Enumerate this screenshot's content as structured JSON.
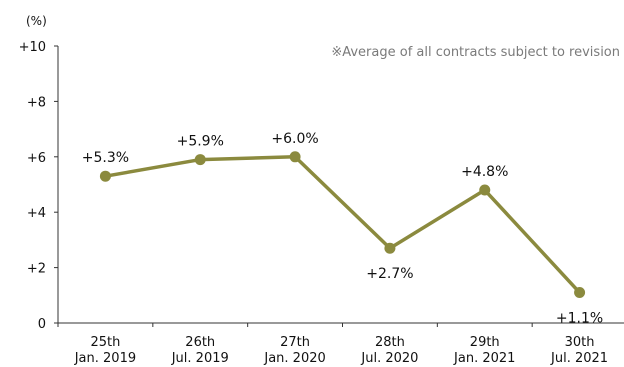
{
  "chart_data": {
    "type": "line",
    "unit_label": "(%)",
    "note": "※Average of all contracts subject to revision",
    "ylim": [
      0,
      10
    ],
    "y_ticks": [
      {
        "value": 0,
        "label": "0"
      },
      {
        "value": 2,
        "label": "+2"
      },
      {
        "value": 4,
        "label": "+4"
      },
      {
        "value": 6,
        "label": "+6"
      },
      {
        "value": 8,
        "label": "+8"
      },
      {
        "value": 10,
        "label": "+10"
      }
    ],
    "categories": [
      {
        "line1": "25th",
        "line2": "Jan. 2019"
      },
      {
        "line1": "26th",
        "line2": "Jul. 2019"
      },
      {
        "line1": "27th",
        "line2": "Jan. 2020"
      },
      {
        "line1": "28th",
        "line2": "Jul. 2020"
      },
      {
        "line1": "29th",
        "line2": "Jan. 2021"
      },
      {
        "line1": "30th",
        "line2": "Jul. 2021"
      }
    ],
    "values": [
      5.3,
      5.9,
      6.0,
      2.7,
      4.8,
      1.1
    ],
    "data_labels": [
      "+5.3%",
      "+5.9%",
      "+6.0%",
      "+2.7%",
      "+4.8%",
      "+1.1%"
    ],
    "label_positions": [
      "above",
      "above",
      "above",
      "below",
      "above",
      "below"
    ],
    "grid": false,
    "legend": "none",
    "series_color": "#8b8a3e"
  }
}
